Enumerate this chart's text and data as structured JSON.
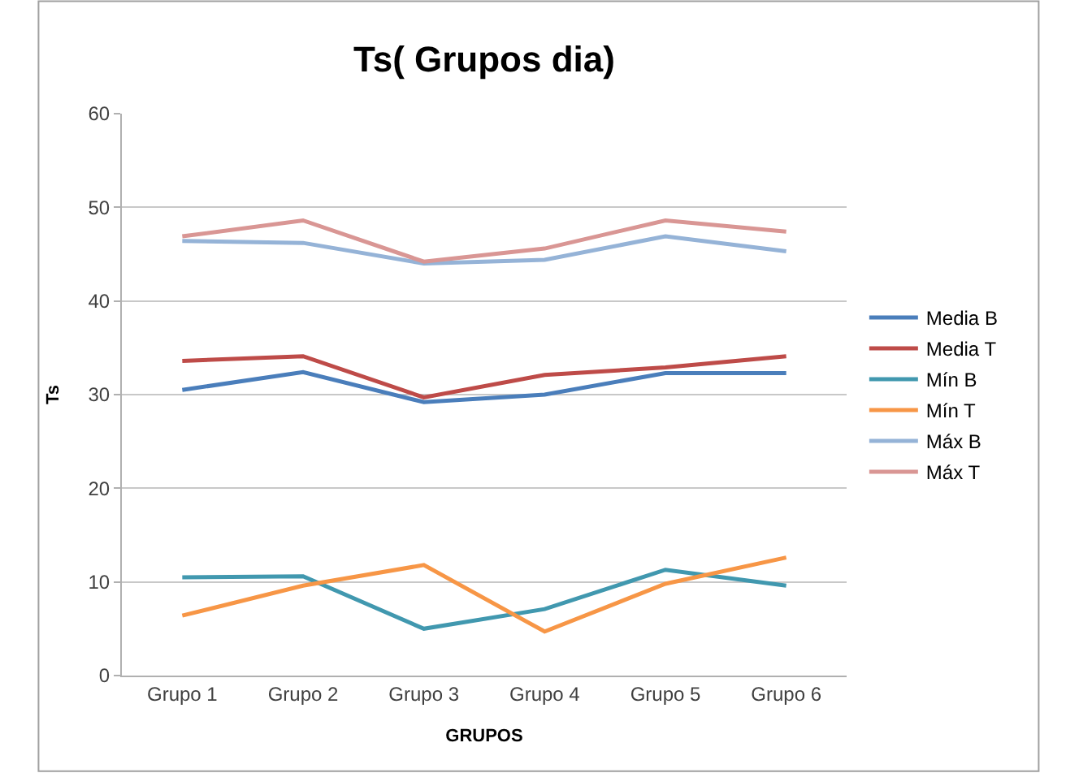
{
  "chart_data": {
    "type": "line",
    "title": "Ts( Grupos dia)",
    "xlabel": "GRUPOS",
    "ylabel": "Ts",
    "categories": [
      "Grupo 1",
      "Grupo 2",
      "Grupo 3",
      "Grupo 4",
      "Grupo 5",
      "Grupo 6"
    ],
    "series": [
      {
        "name": "Media B",
        "color": "#4a7ebb",
        "values": [
          30.5,
          32.4,
          29.2,
          30.0,
          32.3,
          32.3
        ]
      },
      {
        "name": "Media T",
        "color": "#be4b48",
        "values": [
          33.6,
          34.1,
          29.7,
          32.1,
          32.9,
          34.1
        ]
      },
      {
        "name": "Mín B",
        "color": "#4198af",
        "values": [
          10.5,
          10.6,
          5.0,
          7.1,
          11.3,
          9.6
        ]
      },
      {
        "name": "Mín T",
        "color": "#f79646",
        "values": [
          6.4,
          9.6,
          11.8,
          4.7,
          9.8,
          12.6
        ]
      },
      {
        "name": "Máx B",
        "color": "#95b3d7",
        "values": [
          46.4,
          46.2,
          44.0,
          44.4,
          46.9,
          45.3
        ]
      },
      {
        "name": "Máx T",
        "color": "#d99694",
        "values": [
          46.9,
          48.6,
          44.2,
          45.6,
          48.6,
          47.4
        ]
      }
    ],
    "ylim": [
      0,
      60
    ],
    "yticks": [
      0,
      10,
      20,
      30,
      40,
      50,
      60
    ],
    "grid": "y",
    "legend": "right",
    "marker": "none",
    "line_style": "solid"
  }
}
